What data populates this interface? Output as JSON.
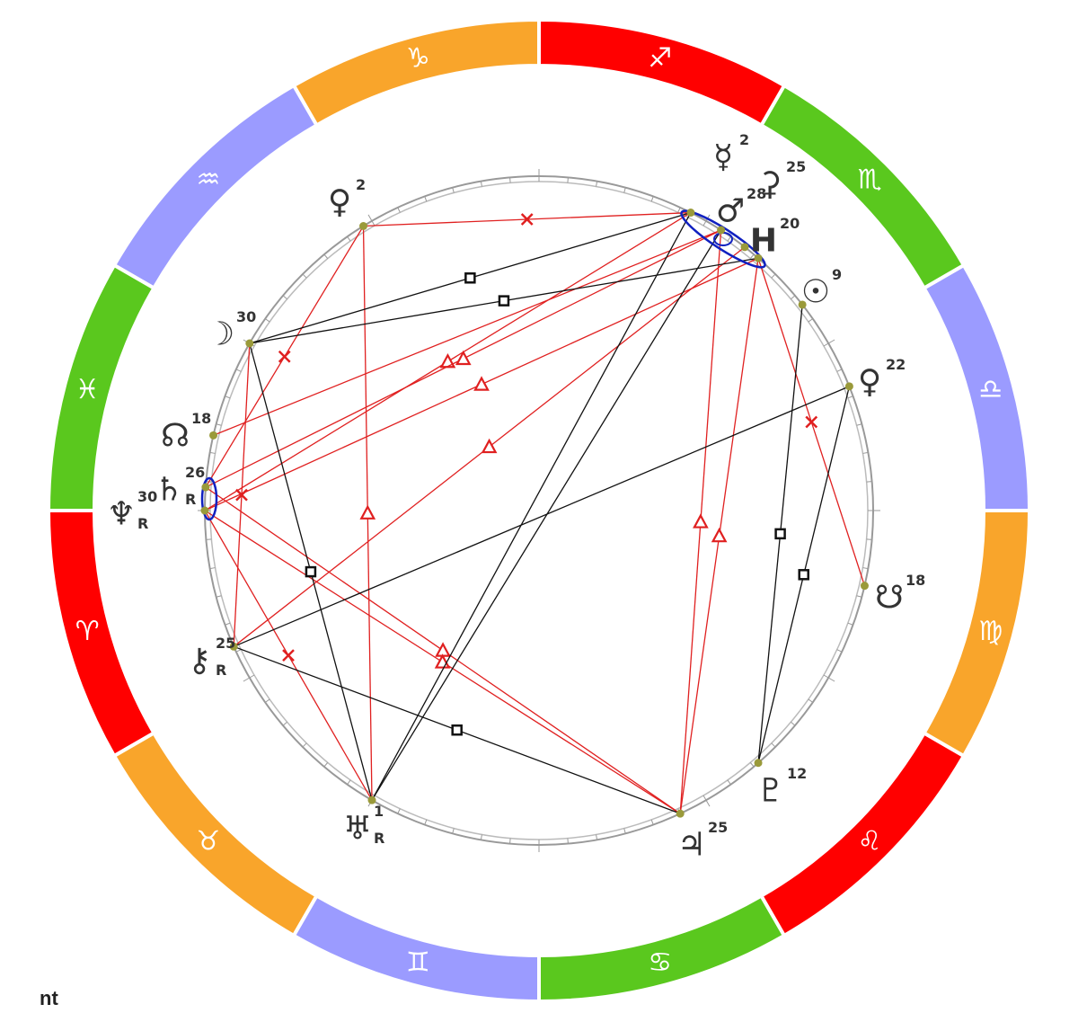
{
  "zodiac": [
    "♈",
    "♉",
    "♊",
    "♋",
    "♌",
    "♍",
    "♎",
    "♏",
    "♐",
    "♑",
    "♒",
    "♓"
  ],
  "planets": [
    {
      "glyph": "☿",
      "degree": 2
    },
    {
      "glyph": "⚳",
      "degree": 25
    },
    {
      "glyph": "♂",
      "degree": 28
    },
    {
      "glyph": "H",
      "degree": 20
    },
    {
      "glyph": "☉",
      "degree": 9
    },
    {
      "glyph": "♀",
      "degree": 22
    },
    {
      "glyph": "☋",
      "degree": 18
    },
    {
      "glyph": "♇",
      "degree": 12
    },
    {
      "glyph": "♃",
      "degree": 25
    },
    {
      "glyph": "♅",
      "degree": 1,
      "retrograde": "R"
    },
    {
      "glyph": "⚷",
      "degree": 25,
      "retrograde": "R"
    },
    {
      "glyph": "♆",
      "degree": 30,
      "retrograde": "R"
    },
    {
      "glyph": "♄",
      "degree": 26,
      "retrograde": "R"
    },
    {
      "glyph": "☊",
      "degree": 18
    },
    {
      "glyph": "☽",
      "degree": 30
    },
    {
      "glyph": "♀",
      "degree": 2
    }
  ],
  "footer": "nt"
}
